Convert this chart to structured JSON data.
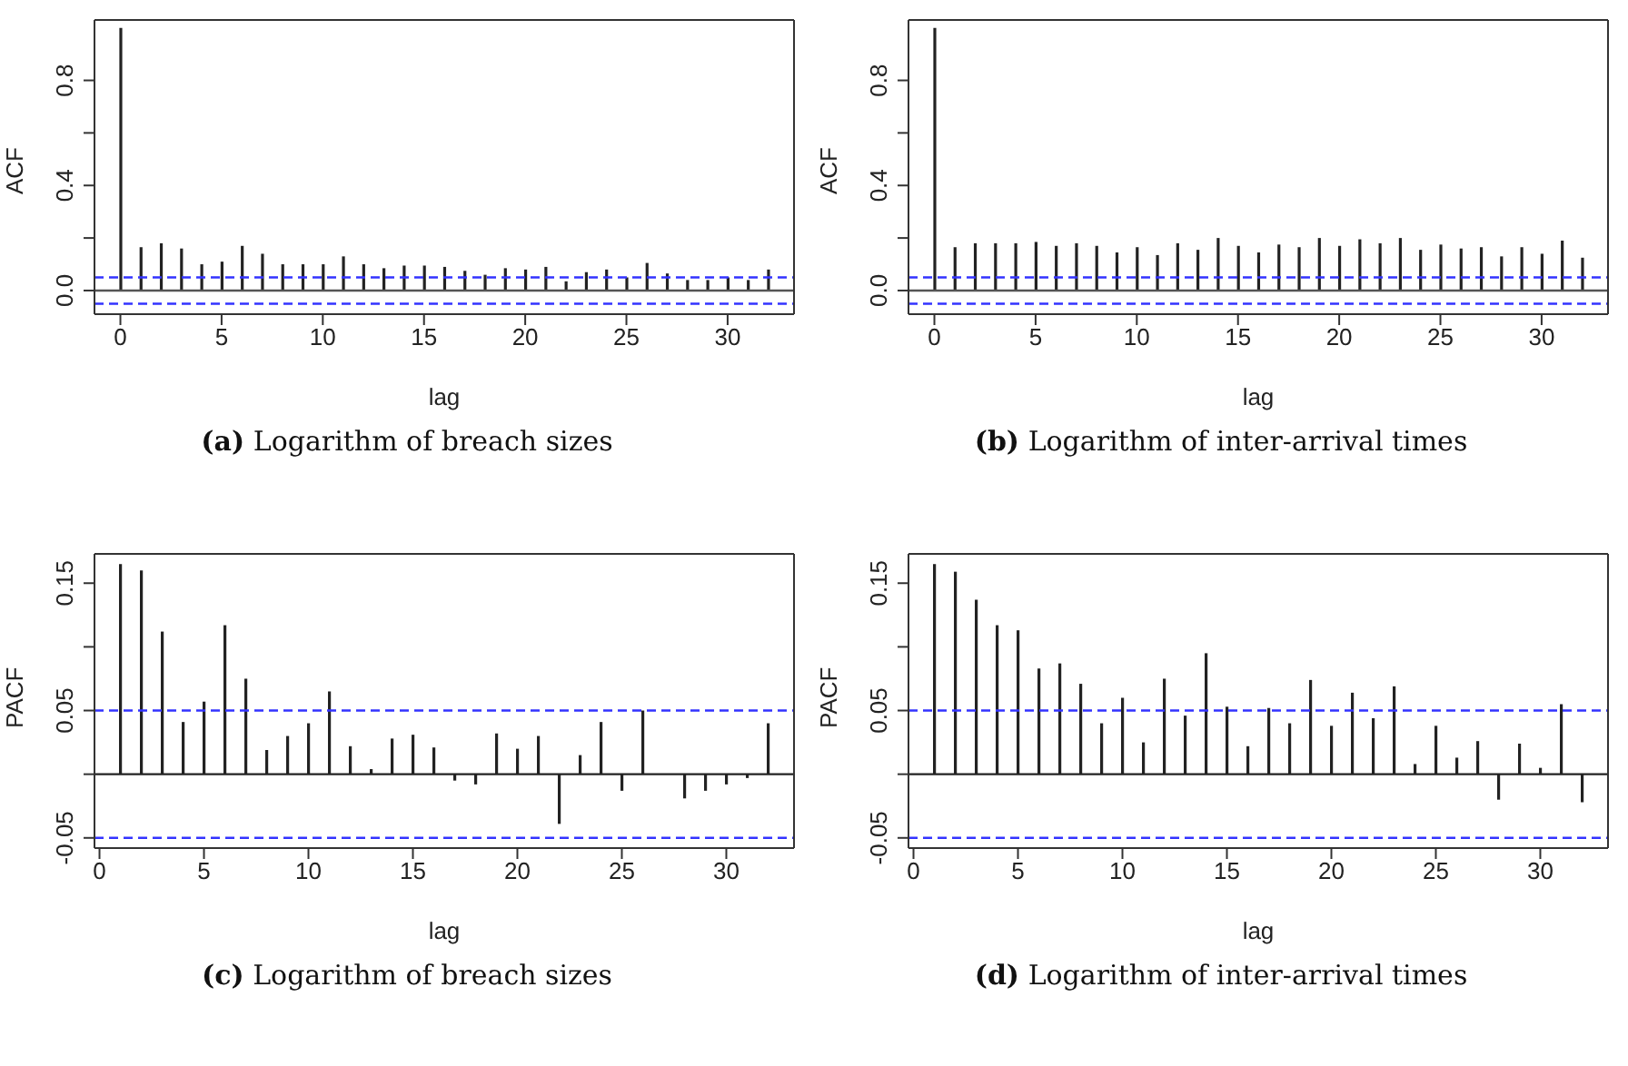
{
  "chart_data": [
    {
      "type": "bar",
      "title": "(a) Logarithm of breach sizes",
      "xlabel": "lag",
      "ylabel": "ACF",
      "x": [
        0,
        1,
        2,
        3,
        4,
        5,
        6,
        7,
        8,
        9,
        10,
        11,
        12,
        13,
        14,
        15,
        16,
        17,
        18,
        19,
        20,
        21,
        22,
        23,
        24,
        25,
        26,
        27,
        28,
        29,
        30,
        31,
        32
      ],
      "series": [
        {
          "color": "#222222",
          "values": [
            1,
            0.165,
            0.18,
            0.16,
            0.1,
            0.11,
            0.17,
            0.14,
            0.1,
            0.1,
            0.1,
            0.13,
            0.1,
            0.085,
            0.095,
            0.095,
            0.09,
            0.075,
            0.06,
            0.085,
            0.08,
            0.09,
            0.035,
            0.07,
            0.08,
            0.05,
            0.105,
            0.065,
            0.04,
            0.04,
            0.05,
            0.04,
            0.08
          ]
        }
      ],
      "xlim": [
        -1.28,
        33.28
      ],
      "ylim": [
        -0.09,
        1.03
      ],
      "xticks": [
        0,
        5,
        10,
        15,
        20,
        25,
        30
      ],
      "yticks": [
        {
          "value": 0,
          "label": "0.0"
        },
        {
          "value": 0.2,
          "label": null
        },
        0.4,
        {
          "value": 0.6,
          "label": null
        },
        0.8
      ],
      "ref_lines": [
        {
          "axis": "y",
          "value": 0,
          "color": "#555555",
          "line_style": "solid"
        },
        {
          "axis": "y",
          "value": 0.05,
          "color": "#3333ff",
          "line_style": "dashed"
        },
        {
          "axis": "y",
          "value": -0.05,
          "color": "#3333ff",
          "line_style": "dashed"
        }
      ]
    },
    {
      "type": "bar",
      "title": "(b) Logarithm of inter-arrival times",
      "xlabel": "lag",
      "ylabel": "ACF",
      "x": [
        0,
        1,
        2,
        3,
        4,
        5,
        6,
        7,
        8,
        9,
        10,
        11,
        12,
        13,
        14,
        15,
        16,
        17,
        18,
        19,
        20,
        21,
        22,
        23,
        24,
        25,
        26,
        27,
        28,
        29,
        30,
        31,
        32
      ],
      "series": [
        {
          "color": "#222222",
          "values": [
            1,
            0.165,
            0.18,
            0.18,
            0.18,
            0.185,
            0.17,
            0.18,
            0.17,
            0.145,
            0.165,
            0.135,
            0.18,
            0.155,
            0.2,
            0.17,
            0.145,
            0.175,
            0.165,
            0.2,
            0.17,
            0.195,
            0.18,
            0.2,
            0.155,
            0.175,
            0.16,
            0.165,
            0.13,
            0.165,
            0.14,
            0.19,
            0.125
          ]
        }
      ],
      "xlim": [
        -1.28,
        33.28
      ],
      "ylim": [
        -0.09,
        1.03
      ],
      "xticks": [
        0,
        5,
        10,
        15,
        20,
        25,
        30
      ],
      "yticks": [
        {
          "value": 0,
          "label": "0.0"
        },
        {
          "value": 0.2,
          "label": null
        },
        0.4,
        {
          "value": 0.6,
          "label": null
        },
        0.8
      ],
      "ref_lines": [
        {
          "axis": "y",
          "value": 0,
          "color": "#555555",
          "line_style": "solid"
        },
        {
          "axis": "y",
          "value": 0.05,
          "color": "#3333ff",
          "line_style": "dashed"
        },
        {
          "axis": "y",
          "value": -0.05,
          "color": "#3333ff",
          "line_style": "dashed"
        }
      ]
    },
    {
      "type": "bar",
      "title": "(c) Logarithm of breach sizes",
      "xlabel": "lag",
      "ylabel": "PACF",
      "x": [
        1,
        2,
        3,
        4,
        5,
        6,
        7,
        8,
        9,
        10,
        11,
        12,
        13,
        14,
        15,
        16,
        17,
        18,
        19,
        20,
        21,
        22,
        23,
        24,
        25,
        26,
        27,
        28,
        29,
        30,
        31,
        32
      ],
      "series": [
        {
          "color": "#222222",
          "values": [
            0.165,
            0.16,
            0.112,
            0.041,
            0.057,
            0.117,
            0.075,
            0.019,
            0.03,
            0.04,
            0.065,
            0.022,
            0.004,
            0.028,
            0.031,
            0.021,
            -0.005,
            -0.008,
            0.032,
            0.02,
            0.03,
            -0.039,
            0.015,
            0.041,
            -0.013,
            0.05,
            null,
            -0.019,
            -0.013,
            -0.008,
            -0.003,
            0.04
          ]
        }
      ],
      "xlim": [
        -0.24,
        33.24
      ],
      "ylim": [
        -0.058,
        0.173
      ],
      "xticks": [
        0,
        5,
        10,
        15,
        20,
        25,
        30
      ],
      "yticks": [
        -0.05,
        {
          "value": 0,
          "label": null
        },
        0.05,
        {
          "value": 0.1,
          "label": null
        },
        0.15
      ],
      "ref_lines": [
        {
          "axis": "y",
          "value": 0,
          "color": "#222222",
          "line_style": "solid"
        },
        {
          "axis": "y",
          "value": 0.05,
          "color": "#3333ff",
          "line_style": "dashed"
        },
        {
          "axis": "y",
          "value": -0.05,
          "color": "#3333ff",
          "line_style": "dashed"
        }
      ]
    },
    {
      "type": "bar",
      "title": "(d) Logarithm of inter-arrival times",
      "xlabel": "lag",
      "ylabel": "PACF",
      "x": [
        1,
        2,
        3,
        4,
        5,
        6,
        7,
        8,
        9,
        10,
        11,
        12,
        13,
        14,
        15,
        16,
        17,
        18,
        19,
        20,
        21,
        22,
        23,
        24,
        25,
        26,
        27,
        28,
        29,
        30,
        31,
        32
      ],
      "series": [
        {
          "color": "#222222",
          "values": [
            0.165,
            0.159,
            0.137,
            0.117,
            0.113,
            0.083,
            0.087,
            0.071,
            0.04,
            0.06,
            0.025,
            0.075,
            0.046,
            0.095,
            0.053,
            0.022,
            0.052,
            0.04,
            0.074,
            0.038,
            0.064,
            0.044,
            0.069,
            0.008,
            0.038,
            0.013,
            0.026,
            -0.02,
            0.024,
            0.005,
            0.055,
            -0.022
          ]
        }
      ],
      "xlim": [
        -0.24,
        33.24
      ],
      "ylim": [
        -0.058,
        0.173
      ],
      "xticks": [
        0,
        5,
        10,
        15,
        20,
        25,
        30
      ],
      "yticks": [
        -0.05,
        {
          "value": 0,
          "label": null
        },
        0.05,
        {
          "value": 0.1,
          "label": null
        },
        0.15
      ],
      "ref_lines": [
        {
          "axis": "y",
          "value": 0,
          "color": "#222222",
          "line_style": "solid"
        },
        {
          "axis": "y",
          "value": 0.05,
          "color": "#3333ff",
          "line_style": "dashed"
        },
        {
          "axis": "y",
          "value": -0.05,
          "color": "#3333ff",
          "line_style": "dashed"
        }
      ]
    }
  ]
}
